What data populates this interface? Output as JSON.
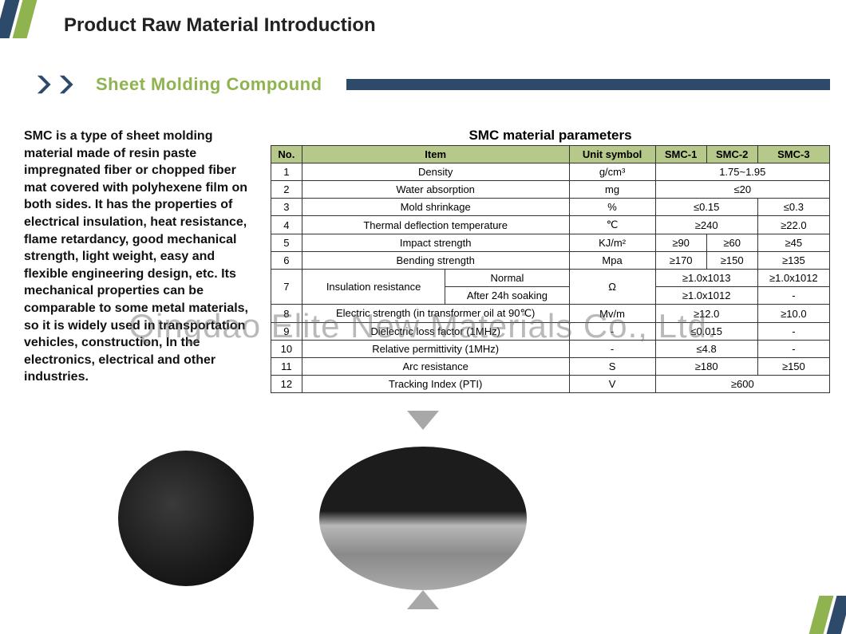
{
  "page_title": "Product Raw Material Introduction",
  "section_title": "Sheet Molding Compound",
  "description": "SMC is a type of sheet molding material  made of resin paste impregnated fiber or  chopped fiber mat covered with polyhexene  film on both sides. It has the properties of electrical insulation,  heat resistance, flame retardancy, good  mechanical strength, light weight, easy and  flexible engineering design, etc. Its  mechanical properties can be comparable to  some metal materials, so it is widely used in transportation vehicles, construction, In the  electronics, electrical and other industries.",
  "table_title": "SMC material parameters",
  "columns": [
    "No.",
    "Item",
    "Unit symbol",
    "SMC-1",
    "SMC-2",
    "SMC-3"
  ],
  "rows": [
    {
      "no": "1",
      "item": "Density",
      "unit": "g/cm³",
      "v": [
        "1.75~1.95"
      ],
      "span": 3
    },
    {
      "no": "2",
      "item": "Water absorption",
      "unit": "mg",
      "v": [
        "≤20"
      ],
      "span": 3
    },
    {
      "no": "3",
      "item": "Mold shrinkage",
      "unit": "%",
      "v": [
        "≤0.15",
        "≤0.3"
      ],
      "span_first": 2
    },
    {
      "no": "4",
      "item": "Thermal deflection temperature",
      "unit": "℃",
      "v": [
        "≥240",
        "≥22.0"
      ],
      "span_first": 2
    },
    {
      "no": "5",
      "item": "Impact strength",
      "unit": "KJ/m²",
      "v": [
        "≥90",
        "≥60",
        "≥45"
      ]
    },
    {
      "no": "6",
      "item": "Bending strength",
      "unit": "Mpa",
      "v": [
        "≥170",
        "≥150",
        "≥135"
      ]
    },
    {
      "no": "7a",
      "item": "Insulation resistance",
      "sub": "Normal",
      "unit": "Ω",
      "v": [
        "≥1.0x1013",
        "≥1.0x1012"
      ],
      "span_first": 2,
      "rowspan_item": 2,
      "rowspan_unit": 2
    },
    {
      "no": "7b",
      "sub": "After 24h soaking",
      "v": [
        "≥1.0x1012",
        "-"
      ],
      "span_first": 2
    },
    {
      "no": "8",
      "item": "Electric strength (in transformer oil at 90℃)",
      "unit": "Mv/m",
      "v": [
        "≥12.0",
        "≥10.0"
      ],
      "span_first": 2
    },
    {
      "no": "9",
      "item": "Dielectric loss factor (1MHz)",
      "unit": "-",
      "v": [
        "≤0.015",
        "-"
      ],
      "span_first": 2
    },
    {
      "no": "10",
      "item": "Relative permittivity (1MHz)",
      "unit": "-",
      "v": [
        "≤4.8",
        "-"
      ],
      "span_first": 2
    },
    {
      "no": "11",
      "item": "Arc resistance",
      "unit": "S",
      "v": [
        "≥180",
        "≥150"
      ],
      "span_first": 2
    },
    {
      "no": "12",
      "item": "Tracking Index (PTI)",
      "unit": "V",
      "v": [
        "≥600"
      ],
      "span": 3
    }
  ],
  "watermark": "Qingdao Elite New Materials Co., Ltd.",
  "colors": {
    "accent_green": "#8fb34f",
    "accent_navy": "#2e4a6b",
    "header_bg": "#b6c98a",
    "arrow_gray": "#a8a8a8"
  }
}
